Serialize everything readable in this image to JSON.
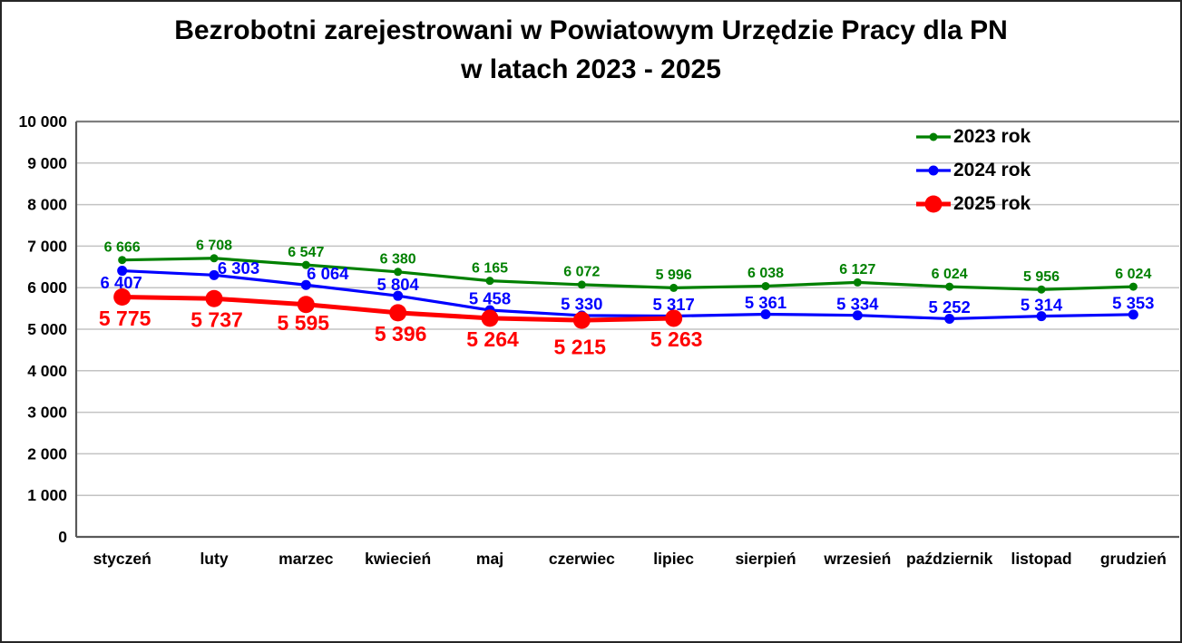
{
  "title": {
    "line1": "Bezrobotni zarejestrowani w Powiatowym Urzędzie Pracy dla PN",
    "line2": "w latach 2023 - 2025"
  },
  "chart_data": {
    "type": "line",
    "title": "Bezrobotni zarejestrowani w Powiatowym Urzędzie Pracy dla PN w latach 2023 - 2025",
    "categories": [
      "styczeń",
      "luty",
      "marzec",
      "kwiecień",
      "maj",
      "czerwiec",
      "lipiec",
      "sierpień",
      "wrzesień",
      "październik",
      "listopad",
      "grudzień"
    ],
    "series": [
      {
        "name": "2023 rok",
        "color": "#008000",
        "values": [
          6666,
          6708,
          6547,
          6380,
          6165,
          6072,
          5996,
          6038,
          6127,
          6024,
          5956,
          6024
        ],
        "line_width": 3.2,
        "marker_radius": 4.5,
        "label_font_size": 16,
        "label_dx": 0,
        "label_dy": -15,
        "label_offsets": {}
      },
      {
        "name": "2024 rok",
        "color": "#0000ff",
        "values": [
          6407,
          6303,
          6064,
          5804,
          5458,
          5330,
          5317,
          5361,
          5334,
          5252,
          5314,
          5353
        ],
        "line_width": 3.2,
        "marker_radius": 5.5,
        "label_font_size": 18.5,
        "label_dx": 0,
        "label_dy": -13,
        "label_offsets": {
          "0": {
            "dx": -1,
            "dy": 13
          },
          "1": {
            "dx": 27,
            "dy": -8
          },
          "2": {
            "dx": 24,
            "dy": -13
          }
        }
      },
      {
        "name": "2025 rok",
        "color": "#ff0000",
        "values": [
          5775,
          5737,
          5595,
          5396,
          5264,
          5215,
          5263
        ],
        "line_width": 5,
        "marker_radius": 9.5,
        "label_font_size": 23,
        "label_dx": 3,
        "label_dy": 23,
        "label_offsets": {
          "2": {
            "dx": -3,
            "dy": 20
          },
          "5": {
            "dx": -2,
            "dy": 29
          }
        }
      }
    ],
    "ylim": [
      0,
      10000
    ],
    "y_ticks": [
      0,
      1000,
      2000,
      3000,
      4000,
      5000,
      6000,
      7000,
      8000,
      9000,
      10000
    ],
    "xlabel": "",
    "ylabel": "",
    "grid": true,
    "legend_position": "top-right",
    "grid_color": "#c3c3c3",
    "axis_color": "#595959",
    "frame_color": "#7f7f7f",
    "tick_label_color": "#000000",
    "thousands_separator": " "
  }
}
